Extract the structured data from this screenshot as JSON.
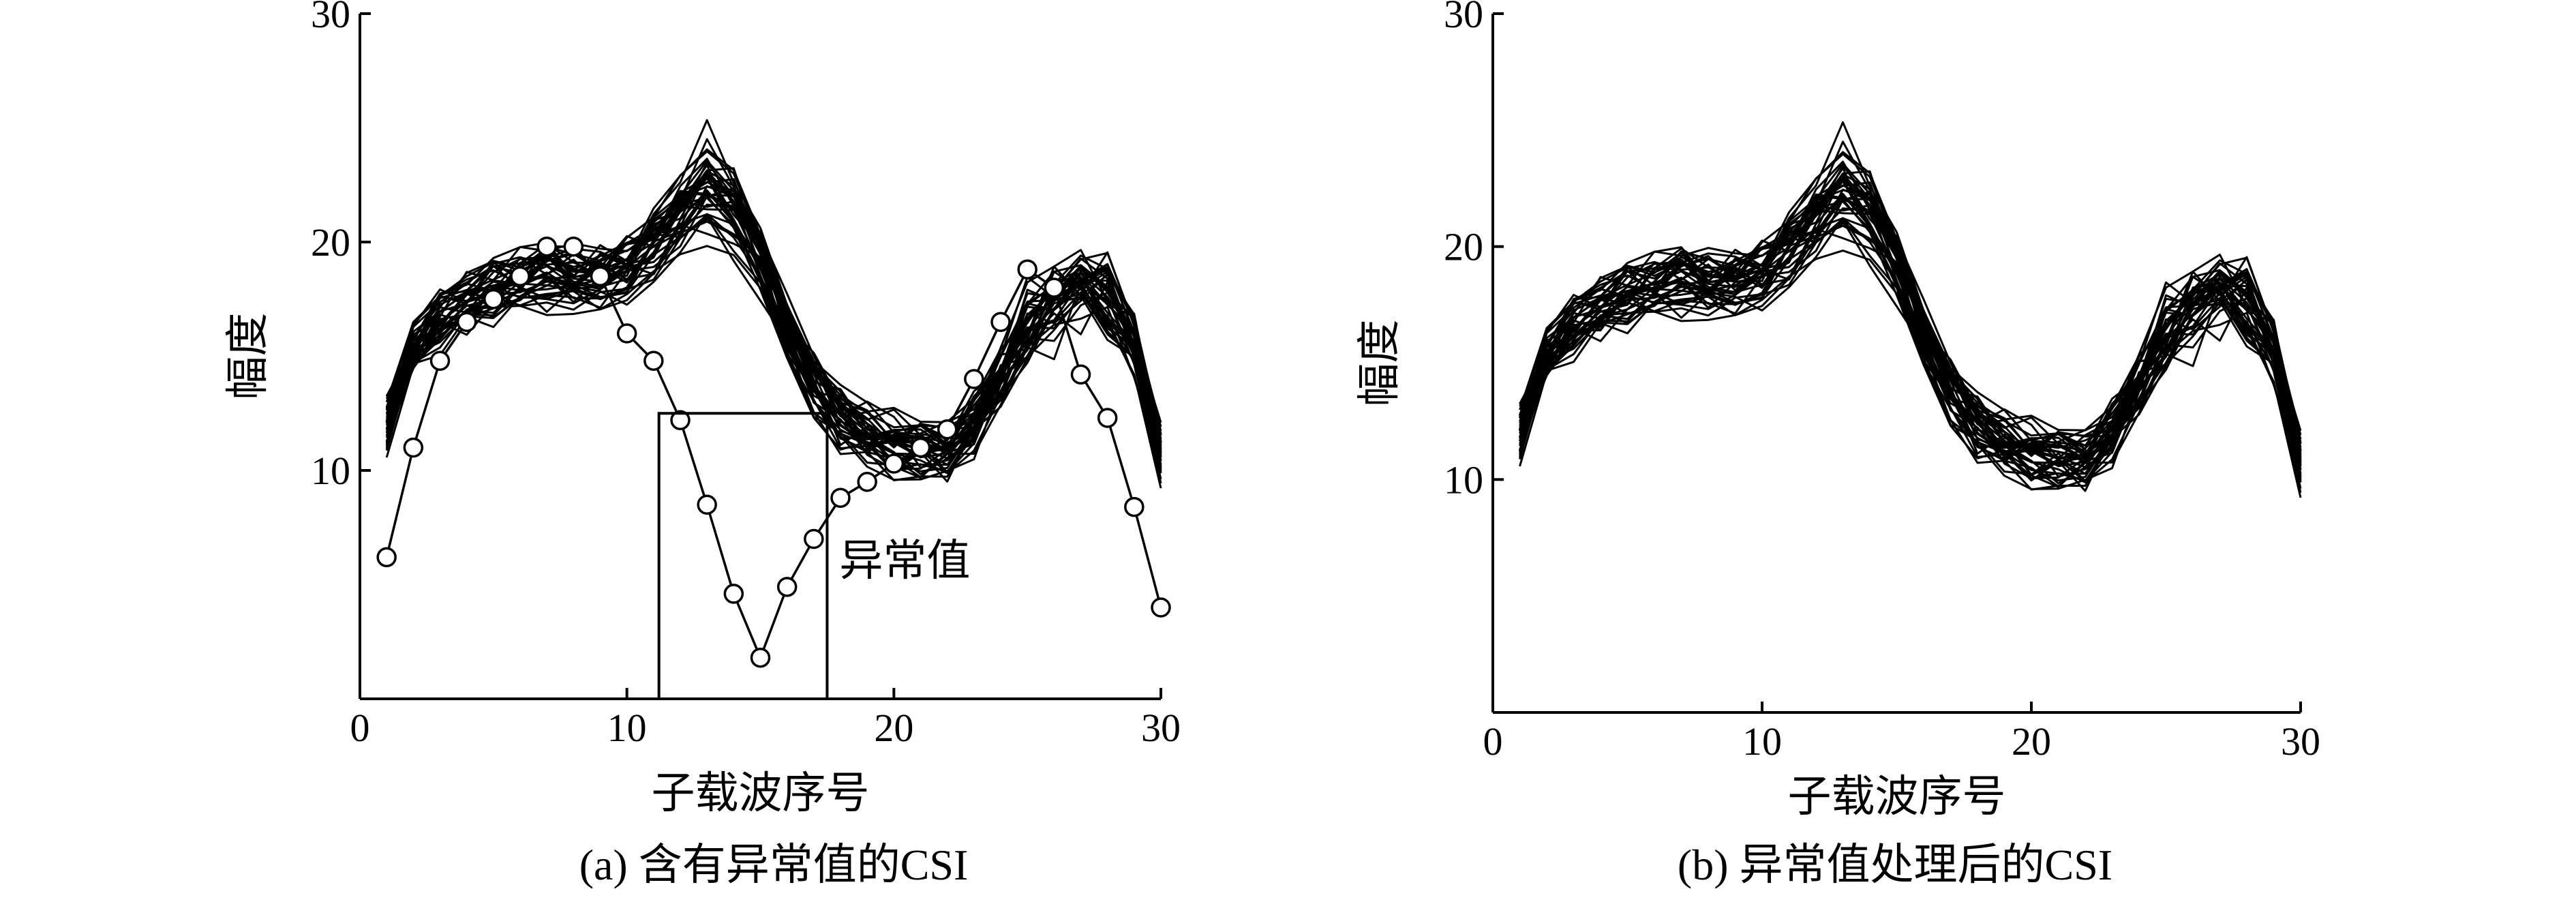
{
  "chart_data": [
    {
      "type": "line",
      "caption": "(a) 含有异常值的CSI",
      "xlabel": "子载波序号",
      "ylabel": "幅度",
      "xlim": [
        0,
        30
      ],
      "ylim": [
        0,
        30
      ],
      "xticks": [
        0,
        10,
        20,
        30
      ],
      "yticks": [
        10,
        20,
        30
      ],
      "grid": false,
      "annotation": {
        "text": "异常值",
        "box": {
          "x": [
            11.2,
            17.5
          ],
          "y": [
            0,
            12.5
          ]
        }
      },
      "outlier_series": {
        "marker": "circle",
        "x": [
          1,
          2,
          3,
          4,
          5,
          6,
          7,
          8,
          9,
          10,
          11,
          12,
          13,
          14,
          15,
          16,
          17,
          18,
          19,
          20,
          21,
          22,
          23,
          24,
          25,
          26,
          27,
          28,
          29,
          30
        ],
        "values": [
          6.2,
          11.0,
          14.8,
          16.5,
          17.5,
          18.5,
          19.8,
          19.8,
          18.5,
          16.0,
          14.8,
          12.2,
          8.5,
          4.6,
          1.8,
          4.9,
          7.0,
          8.8,
          9.5,
          10.3,
          11.0,
          11.8,
          14.0,
          16.5,
          18.8,
          18.0,
          14.2,
          12.3,
          8.4,
          4.0
        ]
      },
      "mean_profile": {
        "x": [
          1,
          2,
          3,
          4,
          5,
          6,
          7,
          8,
          9,
          10,
          11,
          12,
          13,
          14,
          15,
          16,
          17,
          18,
          19,
          20,
          21,
          22,
          23,
          24,
          25,
          26,
          27,
          28,
          29,
          30
        ],
        "values": [
          12.0,
          15.0,
          16.4,
          17.2,
          17.8,
          18.2,
          18.4,
          18.3,
          18.4,
          18.8,
          19.6,
          20.8,
          21.8,
          21.0,
          19.0,
          16.2,
          13.6,
          12.2,
          11.5,
          11.1,
          10.8,
          10.8,
          12.0,
          14.0,
          16.0,
          17.2,
          17.8,
          17.4,
          15.5,
          10.5
        ]
      },
      "series_count": 40,
      "spread": 1.8
    },
    {
      "type": "line",
      "caption": "(b) 异常值处理后的CSI",
      "xlabel": "子载波序号",
      "ylabel": "幅度",
      "xlim": [
        0,
        30
      ],
      "ylim": [
        0,
        30
      ],
      "xticks": [
        0,
        10,
        20,
        30
      ],
      "yticks": [
        10,
        20,
        30
      ],
      "grid": false,
      "mean_profile": {
        "x": [
          1,
          2,
          3,
          4,
          5,
          6,
          7,
          8,
          9,
          10,
          11,
          12,
          13,
          14,
          15,
          16,
          17,
          18,
          19,
          20,
          21,
          22,
          23,
          24,
          25,
          26,
          27,
          28,
          29,
          30
        ],
        "values": [
          12.0,
          15.0,
          16.4,
          17.2,
          17.8,
          18.2,
          18.4,
          18.3,
          18.4,
          18.8,
          19.6,
          20.8,
          21.8,
          21.0,
          19.0,
          16.2,
          13.6,
          12.2,
          11.5,
          11.1,
          10.8,
          10.8,
          12.0,
          14.0,
          16.0,
          17.2,
          17.8,
          17.4,
          15.5,
          10.5
        ]
      },
      "series_count": 40,
      "spread": 1.8
    }
  ]
}
